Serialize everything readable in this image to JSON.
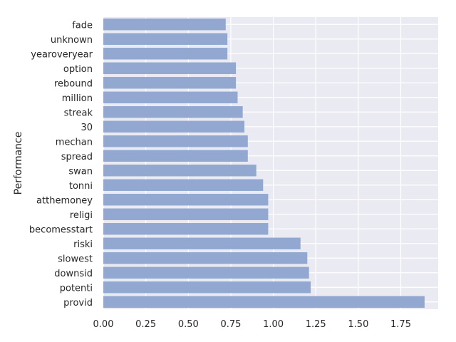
{
  "chart_data": {
    "type": "bar",
    "orientation": "horizontal",
    "title": "",
    "xlabel": "",
    "ylabel": "Performance",
    "xlim": [
      0,
      1.97
    ],
    "xticks": [
      0.0,
      0.25,
      0.5,
      0.75,
      1.0,
      1.25,
      1.5,
      1.75
    ],
    "xtick_labels": [
      "0.00",
      "0.25",
      "0.50",
      "0.75",
      "1.00",
      "1.25",
      "1.50",
      "1.75"
    ],
    "grid": true,
    "legend": "none",
    "bar_color": "#92a8d1",
    "background_color": "#eaeaf2",
    "categories": [
      "provid",
      "potenti",
      "downsid",
      "slowest",
      "riski",
      "becomesstart",
      "religi",
      "atthemoney",
      "tonni",
      "swan",
      "spread",
      "mechan",
      "30",
      "streak",
      "million",
      "rebound",
      "option",
      "yearoveryear",
      "unknown",
      "fade"
    ],
    "values": [
      1.89,
      1.22,
      1.21,
      1.2,
      1.16,
      0.97,
      0.97,
      0.97,
      0.94,
      0.9,
      0.85,
      0.85,
      0.83,
      0.82,
      0.79,
      0.78,
      0.78,
      0.73,
      0.73,
      0.72
    ]
  }
}
